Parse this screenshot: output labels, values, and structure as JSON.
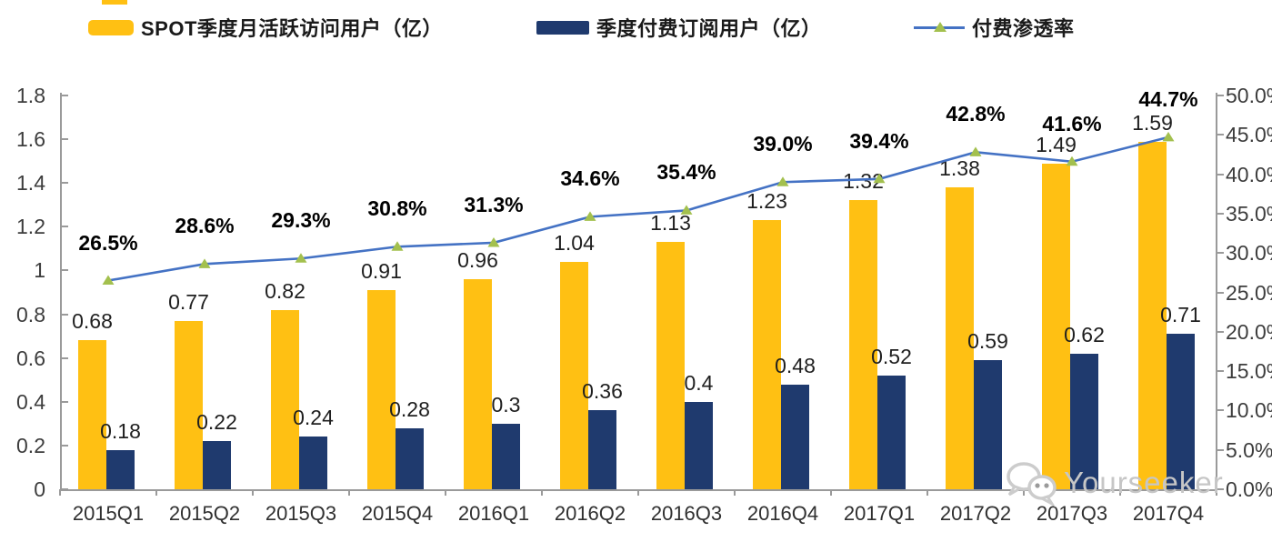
{
  "chart_data": {
    "type": "bar",
    "subtype": "combo-bar-line",
    "title": "",
    "categories": [
      "2015Q1",
      "2015Q2",
      "2015Q3",
      "2015Q4",
      "2016Q1",
      "2016Q2",
      "2016Q3",
      "2016Q4",
      "2017Q1",
      "2017Q2",
      "2017Q3",
      "2017Q4"
    ],
    "series": [
      {
        "name": "SPOT季度月活跃访问用户（亿）",
        "type": "bar",
        "axis": "left",
        "color": "#FFC013",
        "values": [
          0.68,
          0.77,
          0.82,
          0.91,
          0.96,
          1.04,
          1.13,
          1.23,
          1.32,
          1.38,
          1.49,
          1.59
        ]
      },
      {
        "name": "季度付费订阅用户（亿）",
        "type": "bar",
        "axis": "left",
        "color": "#1F3A6E",
        "values": [
          0.18,
          0.22,
          0.24,
          0.28,
          0.3,
          0.36,
          0.4,
          0.48,
          0.52,
          0.59,
          0.62,
          0.71
        ]
      },
      {
        "name": "付费渗透率",
        "type": "line",
        "axis": "right",
        "color": "#4472C4",
        "marker": "triangle-up",
        "marker_color": "#A3C04E",
        "values_pct": [
          26.5,
          28.6,
          29.3,
          30.8,
          31.3,
          34.6,
          35.4,
          39.0,
          39.4,
          42.8,
          41.6,
          44.7
        ]
      }
    ],
    "left_axis": {
      "min": 0,
      "max": 1.8,
      "tick_step": 0.2,
      "labels_top_to_bottom": [
        "1.8",
        "1.6",
        "1.4",
        "1.2",
        "1",
        "0.8",
        "0.6",
        "0.4",
        "0.2",
        "0"
      ]
    },
    "right_axis": {
      "min_pct": 0,
      "max_pct": 50,
      "tick_step_pct": 5,
      "labels_top_to_bottom": [
        "50.0%",
        "45.0%",
        "40.0%",
        "35.0%",
        "30.0%",
        "25.0%",
        "20.0%",
        "15.0%",
        "10.0%",
        "5.0%",
        "0.0%"
      ]
    },
    "grid": false,
    "legend_position": "top",
    "axis_color": "#9a9a9a"
  },
  "watermark": {
    "text": "Yourseeker",
    "icon": "wechat-icon",
    "color": "#c6c6c6"
  }
}
